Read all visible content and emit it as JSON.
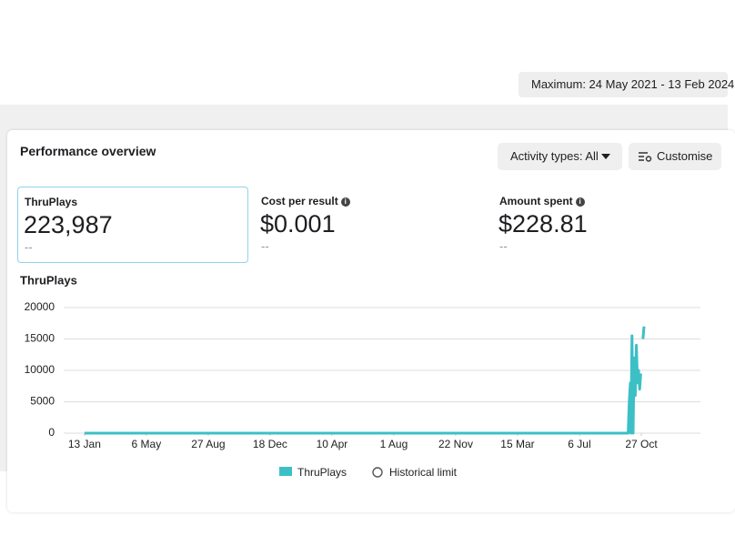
{
  "date_range": "Maximum: 24 May 2021 - 13 Feb 2024",
  "card": {
    "title": "Performance overview",
    "buttons": [
      "Activity types: All",
      "Customise"
    ]
  },
  "metrics": [
    {
      "label": "ThruPlays",
      "value": "223,987",
      "comparison": "--"
    },
    {
      "label": "Cost per result",
      "value": "$0.001",
      "comparison": "--"
    },
    {
      "label": "Amount spent",
      "value": "$228.81",
      "comparison": "--"
    }
  ],
  "chart_data": {
    "type": "line",
    "title": "ThruPlays",
    "x": [
      0,
      200,
      400,
      600,
      800,
      993,
      995,
      997,
      998,
      1000,
      1002,
      1004,
      1006,
      1008,
      1010,
      1012,
      1014,
      1016,
      1018,
      1020,
      1022
    ],
    "series": [
      {
        "name": "ThruPlays",
        "color": "#3cc0c6",
        "values": [
          0,
          0,
          0,
          0,
          0,
          0,
          5000,
          8000,
          0,
          15500,
          0,
          12000,
          6000,
          14000,
          8000,
          10000,
          7000,
          9500,
          null,
          15000,
          17000
        ]
      }
    ],
    "historical_limit_label": "Historical limit",
    "xlim": [
      -38,
      1125
    ],
    "xticks": [
      {
        "value": 0,
        "label": "13 Jan"
      },
      {
        "value": 113,
        "label": "6 May"
      },
      {
        "value": 226,
        "label": "27 Aug"
      },
      {
        "value": 339,
        "label": "18 Dec"
      },
      {
        "value": 452,
        "label": "10 Apr"
      },
      {
        "value": 565,
        "label": "1 Aug"
      },
      {
        "value": 678,
        "label": "22 Nov"
      },
      {
        "value": 791,
        "label": "15 Mar"
      },
      {
        "value": 904,
        "label": "6 Jul"
      },
      {
        "value": 1017,
        "label": "27 Oct"
      }
    ],
    "ylim": [
      0,
      20000
    ],
    "yticks": [
      0,
      5000,
      10000,
      15000,
      20000
    ],
    "grid": true
  }
}
